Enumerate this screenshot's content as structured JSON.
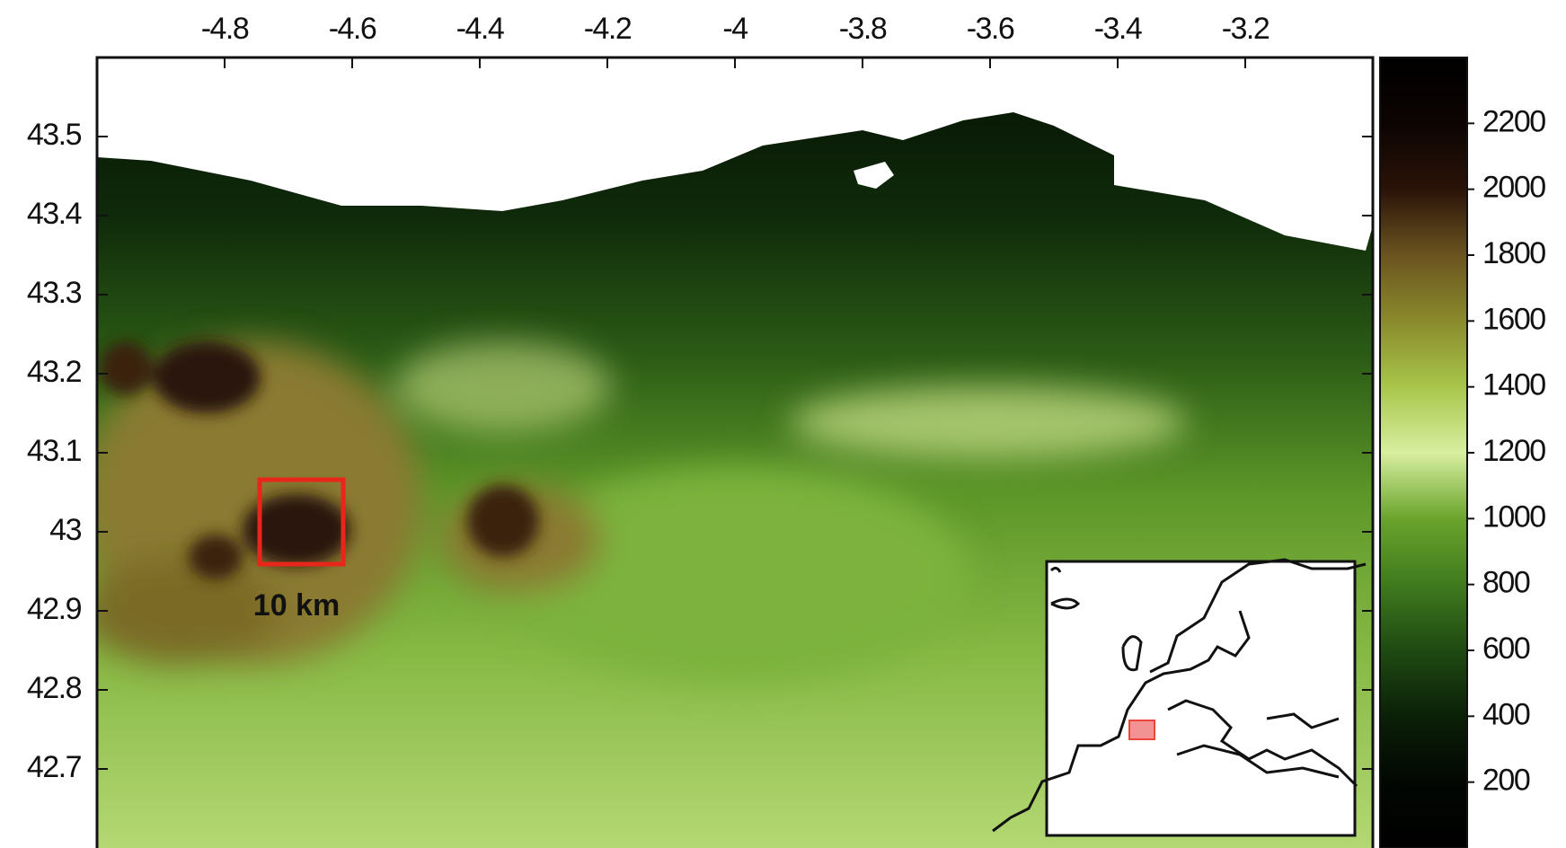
{
  "chart_data": {
    "type": "map",
    "xlim": [
      -5,
      -3
    ],
    "xticks": [
      -4.8,
      -4.6,
      -4.4,
      -4.2,
      -4,
      -3.8,
      -3.6,
      -3.4,
      -3.2
    ],
    "ylim": [
      42.6,
      43.6
    ],
    "yticks": [
      43.5,
      43.4,
      43.3,
      43.2,
      43.1,
      43,
      42.9,
      42.8,
      42.7
    ],
    "colorbar": {
      "lim": [
        0,
        2400
      ],
      "ticks": [
        2200,
        2000,
        1800,
        1600,
        1400,
        1200,
        1000,
        800,
        600,
        400,
        200
      ],
      "colors": [
        "#000000",
        "#020702",
        "#0b2008",
        "#1f4a12",
        "#3f7a1e",
        "#6aa42c",
        "#d8eea0",
        "#a8c64a",
        "#8a8a2c",
        "#6b5420",
        "#2a1308",
        "#0c0402",
        "#000000"
      ]
    },
    "annotation": "10 km",
    "annotation_color": "#e8261b"
  }
}
